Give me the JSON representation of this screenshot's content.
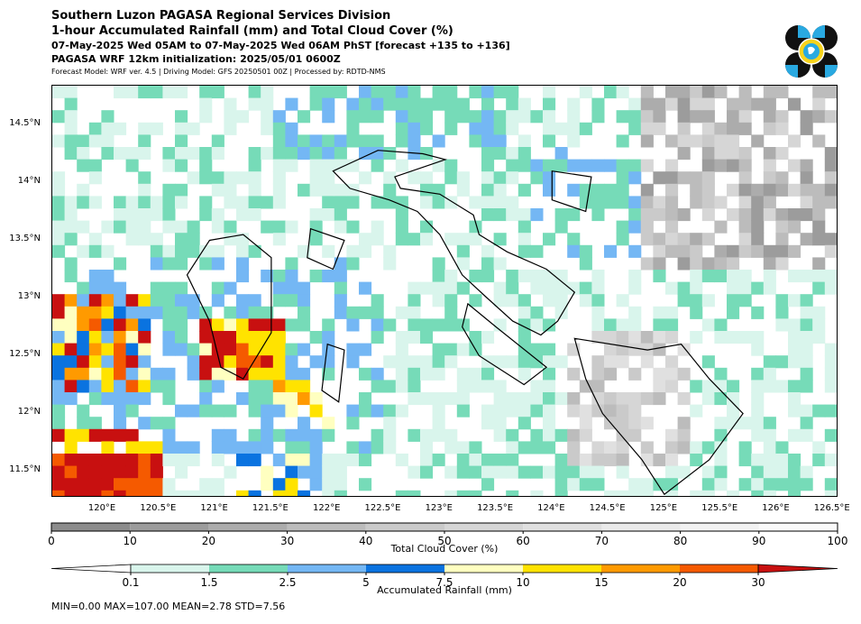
{
  "header": {
    "title_line1": "Southern Luzon PAGASA Regional Services Division",
    "title_line2": "1-hour Accumulated Rainfall (mm) and Total Cloud Cover (%)",
    "title_line3": "07-May-2025 Wed 05AM to 07-May-2025 Wed 06AM PhST [forecast +135 to +136]",
    "title_line4": "PAGASA WRF 12km initialization: 2025/05/01 0600Z",
    "title_line5": "Forecast Model: WRF ver. 4.5 | Driving Model: GFS 20250501 00Z | Processed by: RDTD-NMS"
  },
  "map": {
    "lat_ticks": [
      "14.5°N",
      "14°N",
      "13.5°N",
      "13°N",
      "12.5°N",
      "12°N",
      "11.5°N"
    ],
    "lon_ticks": [
      "120°E",
      "120.5°E",
      "121°E",
      "121.5°E",
      "122°E",
      "122.5°E",
      "123°E",
      "123.5°E",
      "124°E",
      "124.5°E",
      "125°E",
      "125.5°E",
      "126°E",
      "126.5°E"
    ],
    "lon_range": [
      119.55,
      126.55
    ],
    "lat_range": [
      11.27,
      14.84
    ]
  },
  "cloud_colorbar": {
    "label": "Total Cloud Cover (%)",
    "ticks": [
      "0",
      "10",
      "20",
      "30",
      "40",
      "50",
      "60",
      "70",
      "80",
      "90",
      "100"
    ],
    "colors": [
      "#8c8c8c",
      "#9c9c9c",
      "#acacac",
      "#bcbcbc",
      "#cacaca",
      "#d6d6d6",
      "#e0e0e0",
      "#eaeaea",
      "#f2f2f2",
      "#fafafa"
    ]
  },
  "rain_colorbar": {
    "label": "Accumulated Rainfall (mm)",
    "ticks": [
      "0.1",
      "1.5",
      "2.5",
      "5",
      "7.5",
      "10",
      "15",
      "20",
      "30"
    ],
    "colors": [
      "#ffffff",
      "#d9f5ec",
      "#76dbb8",
      "#74b7f4",
      "#0a73e0",
      "#ffffc0",
      "#ffe300",
      "#ff9a00",
      "#f55a00",
      "#c81010"
    ]
  },
  "stats": {
    "text": "MIN=0.00   MAX=107.00   MEAN=2.78   STD=7.56"
  }
}
